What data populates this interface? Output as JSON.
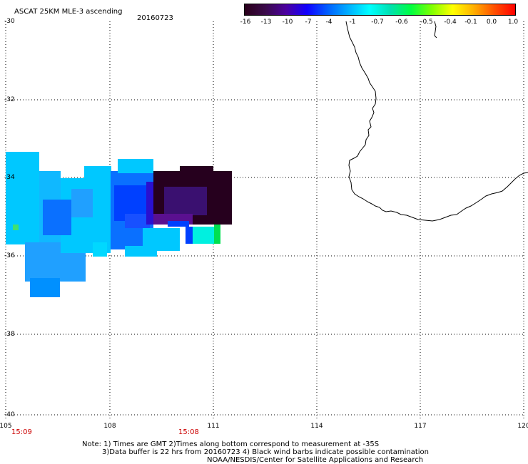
{
  "header": {
    "title": "ASCAT 25KM MLE-3 ascending",
    "date": "20160723"
  },
  "colorbar": {
    "colors": [
      "#2a001a",
      "#3a0a4a",
      "#4b00a0",
      "#1000ff",
      "#0060ff",
      "#00b0ff",
      "#00ffff",
      "#00e0b0",
      "#00ff40",
      "#80ff00",
      "#ffff00",
      "#ffb000",
      "#ff5000",
      "#ff0000"
    ],
    "ticks": [
      "-16",
      "-13",
      "-10",
      "-7",
      "-4",
      "-1",
      "-0.7",
      "-0.6",
      "-0.5",
      "-0.4",
      "-0.1",
      "0.0",
      "1.0"
    ]
  },
  "axes": {
    "lat_labels": [
      "-30",
      "-32",
      "-34",
      "-36",
      "-38",
      "-40"
    ],
    "lon_labels": [
      "105",
      "108",
      "111",
      "114",
      "117",
      "120"
    ]
  },
  "times": [
    "15:09",
    "15:08"
  ],
  "notes": {
    "line1": "Note: 1) Times are GMT 2)Times along bottom correspond to measurement at -35S",
    "line2": "3)Data buffer is 22 hrs from 20160723 4) Black wind barbs indicate possible contamination",
    "line3": "NOAA/NESDIS/Center for Satellite Applications and Research"
  }
}
